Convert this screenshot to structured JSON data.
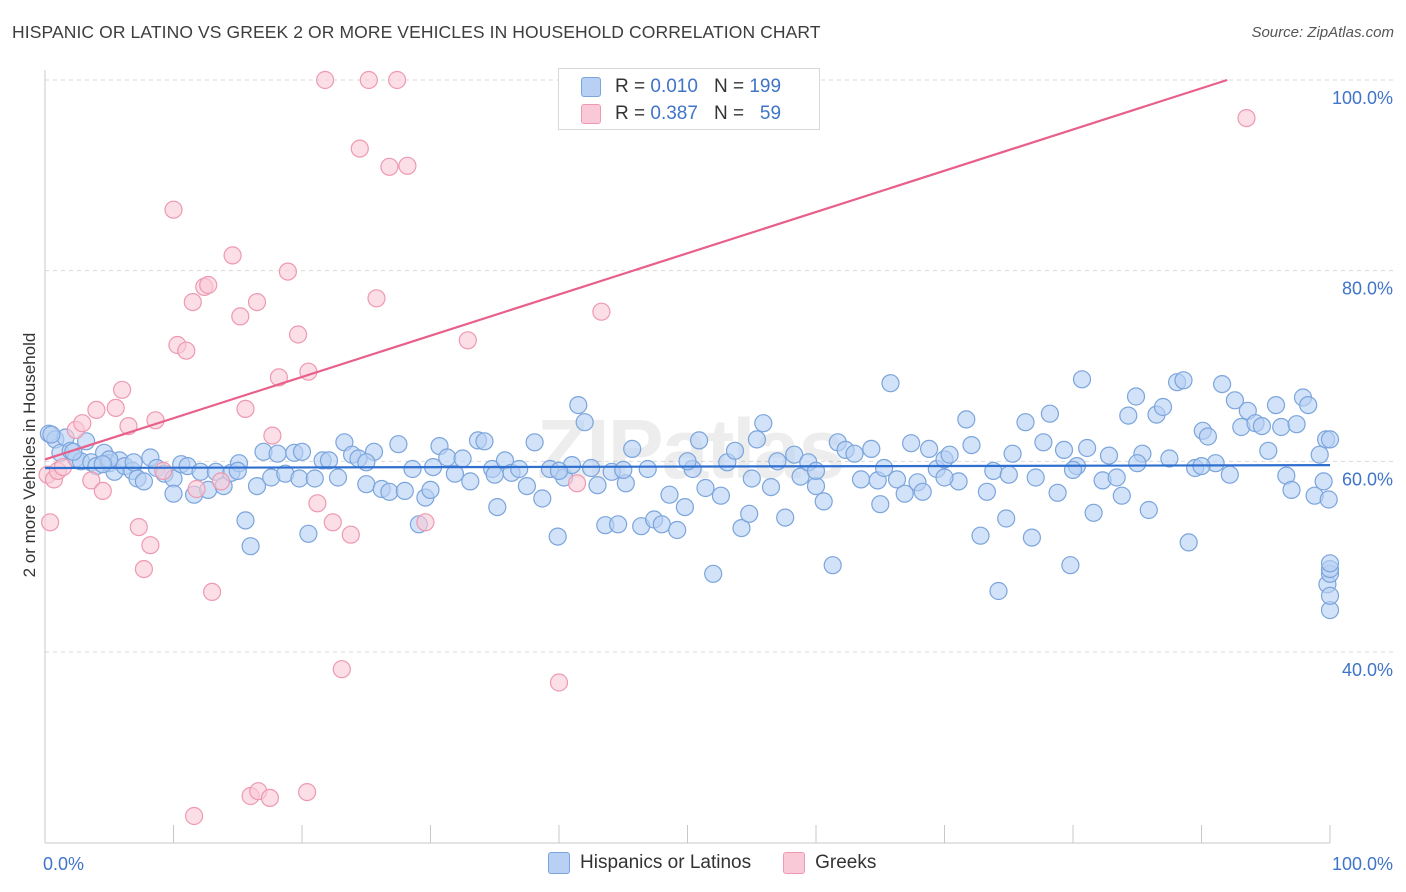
{
  "header": {
    "title": "HISPANIC OR LATINO VS GREEK 2 OR MORE VEHICLES IN HOUSEHOLD CORRELATION CHART",
    "source": "Source: ZipAtlas.com"
  },
  "watermark": "ZIPatlas",
  "legend_top": {
    "rows": [
      {
        "r_label": "R =",
        "r_value": "0.010",
        "n_label": "N =",
        "n_value": "199"
      },
      {
        "r_label": "R =",
        "r_value": "0.387",
        "n_label": "N =",
        "n_value": "59"
      }
    ]
  },
  "legend_bottom": {
    "items": [
      "Hispanics or Latinos",
      "Greeks"
    ]
  },
  "colors": {
    "blue_fill": "#b7d0f3",
    "blue_stroke": "#7ba5dc",
    "blue_line": "#2f6fcf",
    "pink_fill": "#f9c9d7",
    "pink_stroke": "#ee99b1",
    "pink_line": "#e8608a",
    "tick_label": "#3f74c8"
  },
  "chart_data": {
    "type": "scatter",
    "title": "HISPANIC OR LATINO VS GREEK 2 OR MORE VEHICLES IN HOUSEHOLD CORRELATION CHART",
    "xlabel": "",
    "ylabel": "2 or more Vehicles in Household",
    "xlim": [
      0,
      100
    ],
    "ylim": [
      20,
      101
    ],
    "x_tick_labels": [
      "0.0%",
      "100.0%"
    ],
    "y_ticks": [
      40,
      60,
      80,
      100
    ],
    "y_tick_labels": [
      "40.0%",
      "60.0%",
      "80.0%",
      "100.0%"
    ],
    "grid": "horizontal dashed",
    "legend_position": "top-center and bottom",
    "series": [
      {
        "name": "Hispanics or Latinos",
        "color": "#b7d0f3",
        "trend": {
          "x": [
            0,
            100
          ],
          "y": [
            59.3,
            59.6
          ]
        },
        "points": [
          [
            0.3,
            62.9
          ],
          [
            0.8,
            62.3
          ],
          [
            1.2,
            60.9
          ],
          [
            1.6,
            62.5
          ],
          [
            2.0,
            61.1
          ],
          [
            2.4,
            60.3
          ],
          [
            2.8,
            60.0
          ],
          [
            3.2,
            62.1
          ],
          [
            3.6,
            59.9
          ],
          [
            4.0,
            59.5
          ],
          [
            4.6,
            60.9
          ],
          [
            5.0,
            59.8
          ],
          [
            5.4,
            58.9
          ],
          [
            5.8,
            60.1
          ],
          [
            6.2,
            59.5
          ],
          [
            6.8,
            59.0
          ],
          [
            7.2,
            58.2
          ],
          [
            7.7,
            57.9
          ],
          [
            8.2,
            60.4
          ],
          [
            8.7,
            59.3
          ],
          [
            9.3,
            58.7
          ],
          [
            10.0,
            58.2
          ],
          [
            10.6,
            59.7
          ],
          [
            11.1,
            59.5
          ],
          [
            11.6,
            56.5
          ],
          [
            12.1,
            58.9
          ],
          [
            12.7,
            57.0
          ],
          [
            13.3,
            58.9
          ],
          [
            13.9,
            57.4
          ],
          [
            14.5,
            58.8
          ],
          [
            15.1,
            59.8
          ],
          [
            15.6,
            53.8
          ],
          [
            16.0,
            51.1
          ],
          [
            16.5,
            57.4
          ],
          [
            17.0,
            61.0
          ],
          [
            17.6,
            58.3
          ],
          [
            18.1,
            60.8
          ],
          [
            18.7,
            58.7
          ],
          [
            19.4,
            60.9
          ],
          [
            19.8,
            58.2
          ],
          [
            20.5,
            52.4
          ],
          [
            21.0,
            58.2
          ],
          [
            21.6,
            60.1
          ],
          [
            22.1,
            60.1
          ],
          [
            22.8,
            58.3
          ],
          [
            23.3,
            62.0
          ],
          [
            23.9,
            60.7
          ],
          [
            24.4,
            60.3
          ],
          [
            25.0,
            57.6
          ],
          [
            25.6,
            61.0
          ],
          [
            26.2,
            57.1
          ],
          [
            26.8,
            56.8
          ],
          [
            27.5,
            61.8
          ],
          [
            28.0,
            56.9
          ],
          [
            28.6,
            59.2
          ],
          [
            29.1,
            53.4
          ],
          [
            29.6,
            56.2
          ],
          [
            30.2,
            59.4
          ],
          [
            30.7,
            61.6
          ],
          [
            31.3,
            60.4
          ],
          [
            31.9,
            58.7
          ],
          [
            32.5,
            60.3
          ],
          [
            33.1,
            57.9
          ],
          [
            33.7,
            62.2
          ],
          [
            34.2,
            62.1
          ],
          [
            34.8,
            59.2
          ],
          [
            35.2,
            55.2
          ],
          [
            35.8,
            60.1
          ],
          [
            36.3,
            58.8
          ],
          [
            36.9,
            59.2
          ],
          [
            37.5,
            57.4
          ],
          [
            38.1,
            62.0
          ],
          [
            38.7,
            56.1
          ],
          [
            39.3,
            59.2
          ],
          [
            39.9,
            52.1
          ],
          [
            40.4,
            58.3
          ],
          [
            41.0,
            59.6
          ],
          [
            41.5,
            65.9
          ],
          [
            42.0,
            64.1
          ],
          [
            42.5,
            59.3
          ],
          [
            43.0,
            57.5
          ],
          [
            43.6,
            53.3
          ],
          [
            44.1,
            58.9
          ],
          [
            44.6,
            53.4
          ],
          [
            45.2,
            57.7
          ],
          [
            45.7,
            61.3
          ],
          [
            46.4,
            53.2
          ],
          [
            46.9,
            59.2
          ],
          [
            47.4,
            53.9
          ],
          [
            48.0,
            53.4
          ],
          [
            48.6,
            56.5
          ],
          [
            49.2,
            52.8
          ],
          [
            49.8,
            55.2
          ],
          [
            50.4,
            59.2
          ],
          [
            50.9,
            62.2
          ],
          [
            51.4,
            57.2
          ],
          [
            52.0,
            48.2
          ],
          [
            52.6,
            56.4
          ],
          [
            53.1,
            59.9
          ],
          [
            53.7,
            61.1
          ],
          [
            54.2,
            53.0
          ],
          [
            54.8,
            54.5
          ],
          [
            55.4,
            62.3
          ],
          [
            55.9,
            64.0
          ],
          [
            56.5,
            57.3
          ],
          [
            57.0,
            60.0
          ],
          [
            57.6,
            54.1
          ],
          [
            58.3,
            60.7
          ],
          [
            58.8,
            58.4
          ],
          [
            59.4,
            59.9
          ],
          [
            60.0,
            57.4
          ],
          [
            60.6,
            55.8
          ],
          [
            61.3,
            49.1
          ],
          [
            61.7,
            62.0
          ],
          [
            62.3,
            61.2
          ],
          [
            63.0,
            60.8
          ],
          [
            63.5,
            58.1
          ],
          [
            64.3,
            61.3
          ],
          [
            64.8,
            58.0
          ],
          [
            65.3,
            59.3
          ],
          [
            65.8,
            68.2
          ],
          [
            66.3,
            58.1
          ],
          [
            66.9,
            56.6
          ],
          [
            67.4,
            61.9
          ],
          [
            67.9,
            57.8
          ],
          [
            68.3,
            56.8
          ],
          [
            68.8,
            61.3
          ],
          [
            69.4,
            59.2
          ],
          [
            70.0,
            60.2
          ],
          [
            70.4,
            60.7
          ],
          [
            71.1,
            57.9
          ],
          [
            71.7,
            64.4
          ],
          [
            72.1,
            61.7
          ],
          [
            72.8,
            52.2
          ],
          [
            73.3,
            56.8
          ],
          [
            73.8,
            59.0
          ],
          [
            74.2,
            46.4
          ],
          [
            74.8,
            54.0
          ],
          [
            75.3,
            60.8
          ],
          [
            76.3,
            64.1
          ],
          [
            76.8,
            52.0
          ],
          [
            77.1,
            58.3
          ],
          [
            77.7,
            62.0
          ],
          [
            78.2,
            65.0
          ],
          [
            78.8,
            56.7
          ],
          [
            79.3,
            61.2
          ],
          [
            79.8,
            49.1
          ],
          [
            80.3,
            59.5
          ],
          [
            80.7,
            68.6
          ],
          [
            81.1,
            61.4
          ],
          [
            81.6,
            54.6
          ],
          [
            82.3,
            58.0
          ],
          [
            82.8,
            60.6
          ],
          [
            83.4,
            58.3
          ],
          [
            83.8,
            56.4
          ],
          [
            84.3,
            64.8
          ],
          [
            84.9,
            66.8
          ],
          [
            85.4,
            60.8
          ],
          [
            85.9,
            54.9
          ],
          [
            86.5,
            64.9
          ],
          [
            87.0,
            65.7
          ],
          [
            87.5,
            60.3
          ],
          [
            88.1,
            68.3
          ],
          [
            88.6,
            68.5
          ],
          [
            89.0,
            51.5
          ],
          [
            89.5,
            59.3
          ],
          [
            90.1,
            63.2
          ],
          [
            90.5,
            62.6
          ],
          [
            91.1,
            59.8
          ],
          [
            91.6,
            68.1
          ],
          [
            92.2,
            58.6
          ],
          [
            92.6,
            66.4
          ],
          [
            93.1,
            63.6
          ],
          [
            93.6,
            65.3
          ],
          [
            94.2,
            64.0
          ],
          [
            94.7,
            63.7
          ],
          [
            95.2,
            61.1
          ],
          [
            95.8,
            65.9
          ],
          [
            96.2,
            63.6
          ],
          [
            96.6,
            58.5
          ],
          [
            97.0,
            57.0
          ],
          [
            97.4,
            63.9
          ],
          [
            97.9,
            66.7
          ],
          [
            98.3,
            65.9
          ],
          [
            98.8,
            56.4
          ],
          [
            99.2,
            60.7
          ],
          [
            99.7,
            62.3
          ],
          [
            90.0,
            59.5
          ],
          [
            85.0,
            59.8
          ],
          [
            80.0,
            59.1
          ],
          [
            75.0,
            58.6
          ],
          [
            70.0,
            58.3
          ],
          [
            65.0,
            55.5
          ],
          [
            60.0,
            59.0
          ],
          [
            55.0,
            58.2
          ],
          [
            50.0,
            60.0
          ],
          [
            45.0,
            59.1
          ],
          [
            40.0,
            59.0
          ],
          [
            35.0,
            58.6
          ],
          [
            30.0,
            57.0
          ],
          [
            25.0,
            59.9
          ],
          [
            20.0,
            61.0
          ],
          [
            15.0,
            59.0
          ],
          [
            10.0,
            56.6
          ],
          [
            5.0,
            60.2
          ],
          [
            0.5,
            62.8
          ],
          [
            2.2,
            61.0
          ],
          [
            4.5,
            59.7
          ],
          [
            6.9,
            59.9
          ],
          [
            99.9,
            56.0
          ],
          [
            100.0,
            62.3
          ],
          [
            99.5,
            57.9
          ],
          [
            100.0,
            44.4
          ],
          [
            99.8,
            47.1
          ],
          [
            100.0,
            45.9
          ],
          [
            100.0,
            48.2
          ],
          [
            100.0,
            48.7
          ],
          [
            100.0,
            49.3
          ]
        ]
      },
      {
        "name": "Greeks",
        "color": "#f9c9d7",
        "trend": {
          "x": [
            0,
            92
          ],
          "y": [
            60.2,
            100
          ]
        },
        "points": [
          [
            0.2,
            58.6
          ],
          [
            0.4,
            53.6
          ],
          [
            0.7,
            58.1
          ],
          [
            1.0,
            59.0
          ],
          [
            1.4,
            59.4
          ],
          [
            2.4,
            63.3
          ],
          [
            2.9,
            64.0
          ],
          [
            3.6,
            58.0
          ],
          [
            4.0,
            65.4
          ],
          [
            4.5,
            56.9
          ],
          [
            5.5,
            65.6
          ],
          [
            6.0,
            67.5
          ],
          [
            6.5,
            63.7
          ],
          [
            7.3,
            53.1
          ],
          [
            7.7,
            48.7
          ],
          [
            8.2,
            51.2
          ],
          [
            8.6,
            64.3
          ],
          [
            9.2,
            59.0
          ],
          [
            10.0,
            86.4
          ],
          [
            10.3,
            72.2
          ],
          [
            11.0,
            71.6
          ],
          [
            11.5,
            76.7
          ],
          [
            11.8,
            57.1
          ],
          [
            12.4,
            78.3
          ],
          [
            12.7,
            78.5
          ],
          [
            13.0,
            46.3
          ],
          [
            13.7,
            57.9
          ],
          [
            14.6,
            81.6
          ],
          [
            15.2,
            75.2
          ],
          [
            15.6,
            65.5
          ],
          [
            16.5,
            76.7
          ],
          [
            17.7,
            62.7
          ],
          [
            18.2,
            68.8
          ],
          [
            18.9,
            79.9
          ],
          [
            19.7,
            73.3
          ],
          [
            20.5,
            69.4
          ],
          [
            21.2,
            55.6
          ],
          [
            21.8,
            100.0
          ],
          [
            22.4,
            53.6
          ],
          [
            23.1,
            38.2
          ],
          [
            23.8,
            52.3
          ],
          [
            24.5,
            92.8
          ],
          [
            25.2,
            100.0
          ],
          [
            25.8,
            77.1
          ],
          [
            26.8,
            90.9
          ],
          [
            27.4,
            100.0
          ],
          [
            28.2,
            91.0
          ],
          [
            29.6,
            53.6
          ],
          [
            32.9,
            72.7
          ],
          [
            40.0,
            36.8
          ],
          [
            41.4,
            57.7
          ],
          [
            43.3,
            75.7
          ],
          [
            54.0,
            100.0
          ],
          [
            93.5,
            96.0
          ],
          [
            16.0,
            24.9
          ],
          [
            16.6,
            25.4
          ],
          [
            11.6,
            22.8
          ],
          [
            17.5,
            24.7
          ],
          [
            20.4,
            25.3
          ]
        ]
      }
    ]
  }
}
